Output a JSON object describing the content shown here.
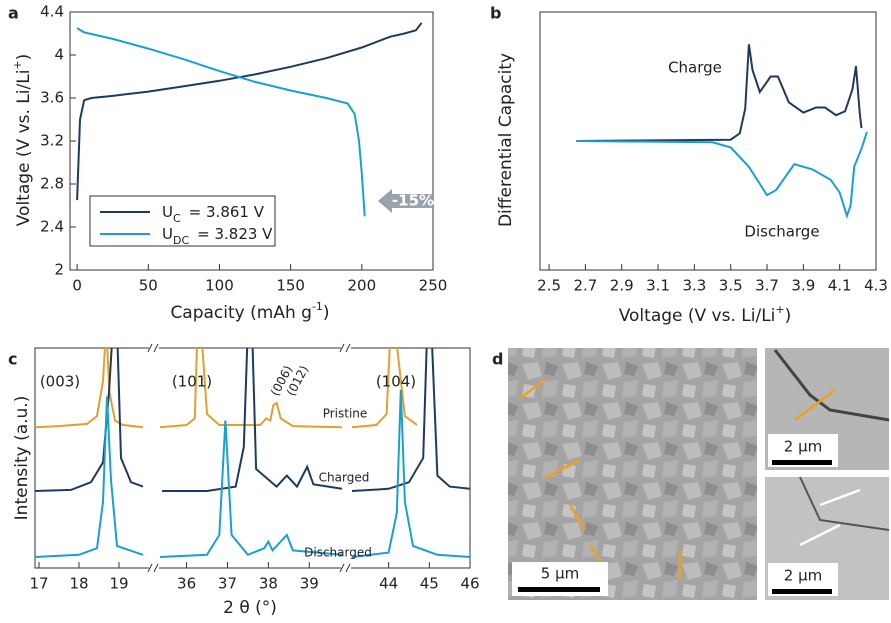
{
  "chart_data": [
    {
      "type": "line",
      "panel_label": "a",
      "x_label": "Capacity (mAh g",
      "x_label_sup": "-1",
      "x_label_end": ")",
      "y_label": "Voltage (V vs. Li/Li",
      "y_label_sup": "+",
      "y_label_end": ")",
      "xlim": [
        -5,
        250
      ],
      "ylim": [
        2,
        4.4
      ],
      "xticks": [
        0,
        50,
        100,
        150,
        200,
        250
      ],
      "yticks": [
        2,
        2.4,
        2.8,
        3.2,
        3.6,
        4,
        4.4
      ],
      "annotations": [
        "-15%"
      ],
      "series": [
        {
          "name": "U",
          "name_subscript": "C",
          "legend_value": "= 3.861 V",
          "color": "#1f3a60",
          "x": [
            0,
            2,
            5,
            10,
            25,
            50,
            75,
            100,
            125,
            150,
            175,
            200,
            220,
            230,
            238,
            242
          ],
          "values": [
            2.65,
            3.4,
            3.58,
            3.6,
            3.62,
            3.66,
            3.71,
            3.76,
            3.82,
            3.89,
            3.97,
            4.07,
            4.17,
            4.2,
            4.23,
            4.3
          ]
        },
        {
          "name": "U",
          "name_subscript": "DC",
          "legend_value": "= 3.823 V",
          "color": "#1aa0d0",
          "x": [
            0,
            5,
            25,
            50,
            75,
            100,
            125,
            150,
            175,
            190,
            195,
            198,
            200,
            202
          ],
          "values": [
            4.25,
            4.21,
            4.15,
            4.06,
            3.96,
            3.85,
            3.75,
            3.67,
            3.6,
            3.55,
            3.45,
            3.2,
            2.9,
            2.5
          ]
        }
      ]
    },
    {
      "type": "line",
      "panel_label": "b",
      "x_label": "Voltage (V vs. Li/Li",
      "x_label_sup": "+",
      "x_label_end": ")",
      "y_label": "Differential Capacity",
      "xlim": [
        2.45,
        4.3
      ],
      "ylim": [
        -1,
        1
      ],
      "xticks": [
        2.5,
        2.7,
        2.9,
        3.1,
        3.3,
        3.5,
        3.7,
        3.9,
        4.1,
        4.3
      ],
      "annotations": [
        "Charge",
        "Discharge"
      ],
      "series": [
        {
          "color": "#1f3a60",
          "x": [
            2.65,
            3.5,
            3.55,
            3.58,
            3.6,
            3.62,
            3.66,
            3.72,
            3.76,
            3.82,
            3.9,
            3.97,
            4.02,
            4.08,
            4.13,
            4.17,
            4.19,
            4.21,
            4.22
          ],
          "values": [
            0,
            0.01,
            0.06,
            0.25,
            0.75,
            0.55,
            0.38,
            0.5,
            0.5,
            0.3,
            0.22,
            0.26,
            0.26,
            0.2,
            0.23,
            0.4,
            0.58,
            0.22,
            0.1
          ]
        },
        {
          "color": "#1aa0d0",
          "x": [
            2.65,
            3.4,
            3.5,
            3.6,
            3.7,
            3.75,
            3.85,
            3.95,
            4.05,
            4.1,
            4.14,
            4.16,
            4.18,
            4.22,
            4.25
          ],
          "values": [
            0,
            -0.01,
            -0.05,
            -0.2,
            -0.42,
            -0.38,
            -0.18,
            -0.22,
            -0.3,
            -0.4,
            -0.58,
            -0.5,
            -0.2,
            -0.06,
            0.07
          ]
        }
      ]
    },
    {
      "type": "line",
      "panel_label": "c",
      "x_label": "2 θ (°)",
      "y_label": "Intensity (a.u.)",
      "ylim": [
        0,
        10
      ],
      "segments": [
        {
          "xlim": [
            16.9,
            19.6
          ],
          "xticks": [
            17,
            18,
            19
          ]
        },
        {
          "xlim": [
            35.35,
            39.8
          ],
          "xticks": [
            36,
            37,
            38,
            39
          ]
        },
        {
          "xlim": [
            43.1,
            46
          ],
          "xticks": [
            44,
            45,
            46
          ]
        }
      ],
      "annotations": [
        "(003)",
        "(101)",
        "(006)",
        "(012)",
        "(104)",
        "Pristine",
        "Charged",
        "Discharged"
      ],
      "series": [
        {
          "color": "#e0a030",
          "x": [
            16.9,
            17.5,
            18.2,
            18.45,
            18.6,
            18.68,
            18.76,
            18.9,
            19.1,
            19.6,
            null,
            35.35,
            36.0,
            36.2,
            36.27,
            36.35,
            36.5,
            36.8,
            37.8,
            37.95,
            38.05,
            38.12,
            38.2,
            38.3,
            38.6,
            39.8,
            null,
            43.1,
            43.7,
            43.95,
            44.05,
            44.15,
            44.4,
            44.7
          ],
          "values": [
            6.4,
            6.45,
            6.55,
            6.9,
            8.5,
            11,
            8.0,
            6.7,
            6.5,
            6.4,
            null,
            6.4,
            6.5,
            6.8,
            11,
            11,
            7.0,
            6.5,
            6.5,
            6.8,
            6.7,
            7.4,
            7.5,
            6.8,
            6.45,
            6.4,
            null,
            6.4,
            6.5,
            7.0,
            11,
            11,
            6.9,
            6.5
          ]
        },
        {
          "color": "#1f3a60",
          "x": [
            16.9,
            17.8,
            18.3,
            18.6,
            18.75,
            18.85,
            18.95,
            19.05,
            19.3,
            19.6,
            null,
            35.4,
            36.5,
            37.2,
            37.4,
            37.5,
            37.6,
            37.7,
            38.2,
            38.45,
            38.7,
            38.95,
            39.1,
            39.8,
            null,
            43.1,
            44.0,
            44.5,
            44.85,
            44.95,
            45.05,
            45.2,
            45.5,
            46.0
          ],
          "values": [
            3.5,
            3.55,
            3.9,
            4.8,
            8,
            11,
            11,
            5,
            3.9,
            3.7,
            null,
            3.5,
            3.5,
            3.7,
            5.5,
            11,
            11,
            4.5,
            3.7,
            4.2,
            3.7,
            4.6,
            3.8,
            3.6,
            null,
            3.5,
            3.6,
            3.9,
            5,
            11,
            11,
            4.2,
            3.7,
            3.6
          ]
        },
        {
          "color": "#1aa0d0",
          "x": [
            16.9,
            18.0,
            18.45,
            18.6,
            18.7,
            18.8,
            18.95,
            19.6,
            null,
            35.35,
            36.5,
            36.8,
            36.95,
            37.1,
            37.5,
            37.9,
            38.0,
            38.1,
            38.35,
            38.45,
            38.6,
            39.8,
            null,
            43.1,
            44.0,
            44.2,
            44.3,
            44.4,
            44.6,
            45.2,
            46.0
          ],
          "values": [
            0.5,
            0.6,
            0.9,
            3,
            7.8,
            4,
            1.0,
            0.6,
            null,
            0.5,
            0.6,
            1.5,
            6.7,
            1.5,
            0.6,
            0.9,
            1.2,
            0.8,
            1.3,
            1.5,
            0.8,
            0.6,
            null,
            0.5,
            0.7,
            2.5,
            8.1,
            3,
            1.0,
            0.6,
            0.5
          ]
        }
      ]
    }
  ],
  "panel_d": {
    "panel_label": "d",
    "scale_bars": [
      "5 µm",
      "2 µm",
      "2 µm"
    ]
  }
}
